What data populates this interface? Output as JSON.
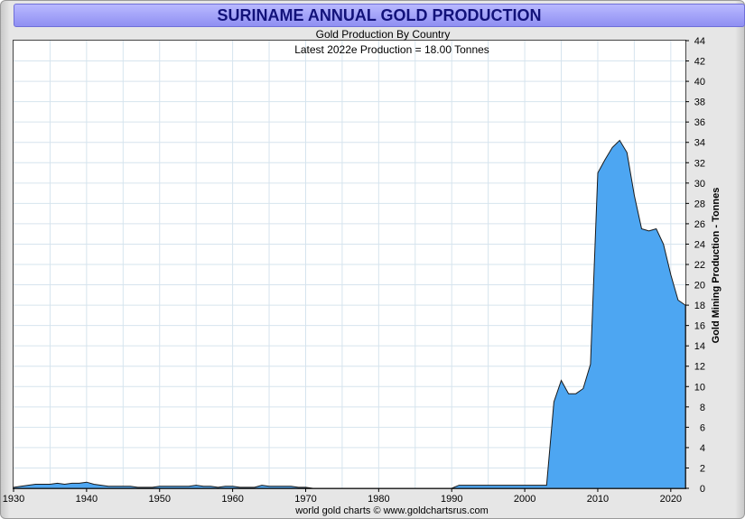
{
  "title": "SURINAME ANNUAL GOLD PRODUCTION",
  "subtitle": "Gold Production By Country",
  "latest": "Latest 2022e  Production = 18.00 Tonnes",
  "footer": "world gold charts © www.goldchartsrus.com",
  "colors": {
    "fill": "#4da6f2",
    "line": "#1a1a1a",
    "grid": "#d6e4ee",
    "title_text": "#12127a"
  },
  "chart_data": {
    "type": "area",
    "ylabel": "Gold Mining Production - Tonnes",
    "xlim": [
      1930,
      2022
    ],
    "ylim": [
      0,
      44
    ],
    "x_ticks": [
      "1930",
      "1940",
      "1950",
      "1960",
      "1970",
      "1980",
      "1990",
      "2000",
      "2010",
      "2020"
    ],
    "y_ticks": [
      "0",
      "2",
      "4",
      "6",
      "8",
      "10",
      "12",
      "14",
      "16",
      "18",
      "20",
      "22",
      "24",
      "26",
      "28",
      "30",
      "32",
      "34",
      "36",
      "38",
      "40",
      "42",
      "44"
    ],
    "grid": true,
    "x": [
      1930,
      1931,
      1932,
      1933,
      1934,
      1935,
      1936,
      1937,
      1938,
      1939,
      1940,
      1941,
      1942,
      1943,
      1944,
      1945,
      1946,
      1947,
      1948,
      1949,
      1950,
      1951,
      1952,
      1953,
      1954,
      1955,
      1956,
      1957,
      1958,
      1959,
      1960,
      1961,
      1962,
      1963,
      1964,
      1965,
      1966,
      1967,
      1968,
      1969,
      1970,
      1971,
      1990,
      1991,
      1992,
      1993,
      1994,
      1995,
      1996,
      1997,
      1998,
      1999,
      2000,
      2001,
      2002,
      2003,
      2004,
      2005,
      2006,
      2007,
      2008,
      2009,
      2010,
      2011,
      2012,
      2013,
      2014,
      2015,
      2016,
      2017,
      2018,
      2019,
      2020,
      2021,
      2022
    ],
    "values": [
      0.1,
      0.2,
      0.3,
      0.4,
      0.4,
      0.4,
      0.5,
      0.4,
      0.5,
      0.5,
      0.6,
      0.4,
      0.3,
      0.2,
      0.2,
      0.2,
      0.2,
      0.1,
      0.1,
      0.1,
      0.2,
      0.2,
      0.2,
      0.2,
      0.2,
      0.3,
      0.2,
      0.2,
      0.1,
      0.2,
      0.2,
      0.1,
      0.1,
      0.1,
      0.3,
      0.2,
      0.2,
      0.2,
      0.2,
      0.1,
      0.1,
      0.0,
      0.0,
      0.3,
      0.3,
      0.3,
      0.3,
      0.3,
      0.3,
      0.3,
      0.3,
      0.3,
      0.3,
      0.3,
      0.3,
      0.3,
      8.5,
      10.6,
      9.3,
      9.3,
      9.8,
      12.2,
      31.0,
      32.3,
      33.5,
      34.2,
      33.0,
      28.8,
      25.5,
      25.3,
      25.5,
      24.0,
      21.0,
      18.5,
      18.0
    ]
  }
}
